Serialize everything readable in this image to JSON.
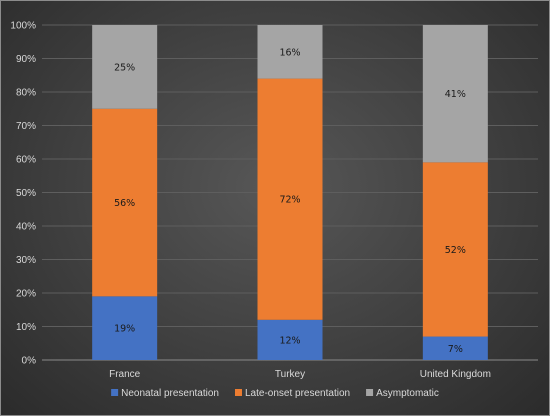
{
  "chart_data": {
    "type": "bar",
    "stacked": true,
    "title": "",
    "xlabel": "",
    "ylabel": "",
    "ylim": [
      0,
      100
    ],
    "y_unit": "%",
    "y_ticks": [
      0,
      10,
      20,
      30,
      40,
      50,
      60,
      70,
      80,
      90,
      100
    ],
    "grid": true,
    "legend_position": "bottom",
    "categories": [
      "France",
      "Turkey",
      "United Kingdom"
    ],
    "series": [
      {
        "name": "Neonatal presentation",
        "color": "#4472c4",
        "values": [
          19,
          12,
          7
        ],
        "labels": [
          "19%",
          "12%",
          "7%"
        ]
      },
      {
        "name": "Late-onset presentation",
        "color": "#ed7d31",
        "values": [
          56,
          72,
          52
        ],
        "labels": [
          "56%",
          "72%",
          "52%"
        ]
      },
      {
        "name": "Asymptomatic",
        "color": "#a5a5a5",
        "values": [
          25,
          16,
          41
        ],
        "labels": [
          "25%",
          "16%",
          "41%"
        ]
      }
    ]
  }
}
